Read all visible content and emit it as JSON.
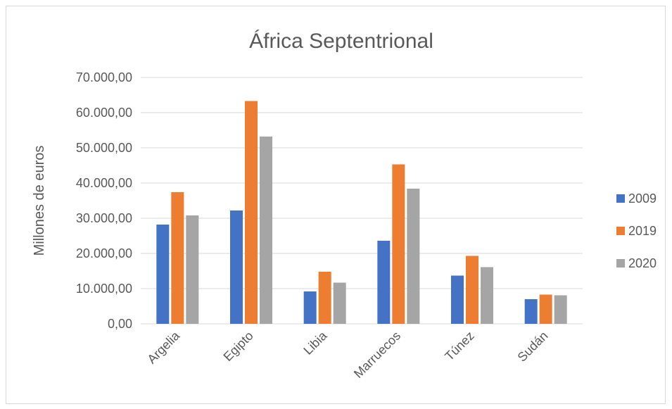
{
  "chart_data": {
    "type": "bar",
    "title": "África Septentrional",
    "xlabel": "",
    "ylabel": "Millones de euros",
    "categories": [
      "Argelia",
      "Egipto",
      "Libia",
      "Marruecos",
      "Túnez",
      "Sudán"
    ],
    "series": [
      {
        "name": "2009",
        "color": "#4472c4",
        "values": [
          28200,
          32200,
          9200,
          23600,
          13700,
          7000
        ]
      },
      {
        "name": "2019",
        "color": "#ed7d31",
        "values": [
          37400,
          63300,
          14800,
          45300,
          19300,
          8300
        ]
      },
      {
        "name": "2020",
        "color": "#a5a5a5",
        "values": [
          30800,
          53200,
          11700,
          38400,
          16100,
          8100
        ]
      }
    ],
    "ylim": [
      0,
      70000
    ],
    "yticks": [
      0,
      10000,
      20000,
      30000,
      40000,
      50000,
      60000,
      70000
    ],
    "ytick_labels": [
      "0,00",
      "10.000,00",
      "20.000,00",
      "30.000,00",
      "40.000,00",
      "50.000,00",
      "60.000,00",
      "70.000,00"
    ],
    "grid": true,
    "legend_position": "right"
  }
}
